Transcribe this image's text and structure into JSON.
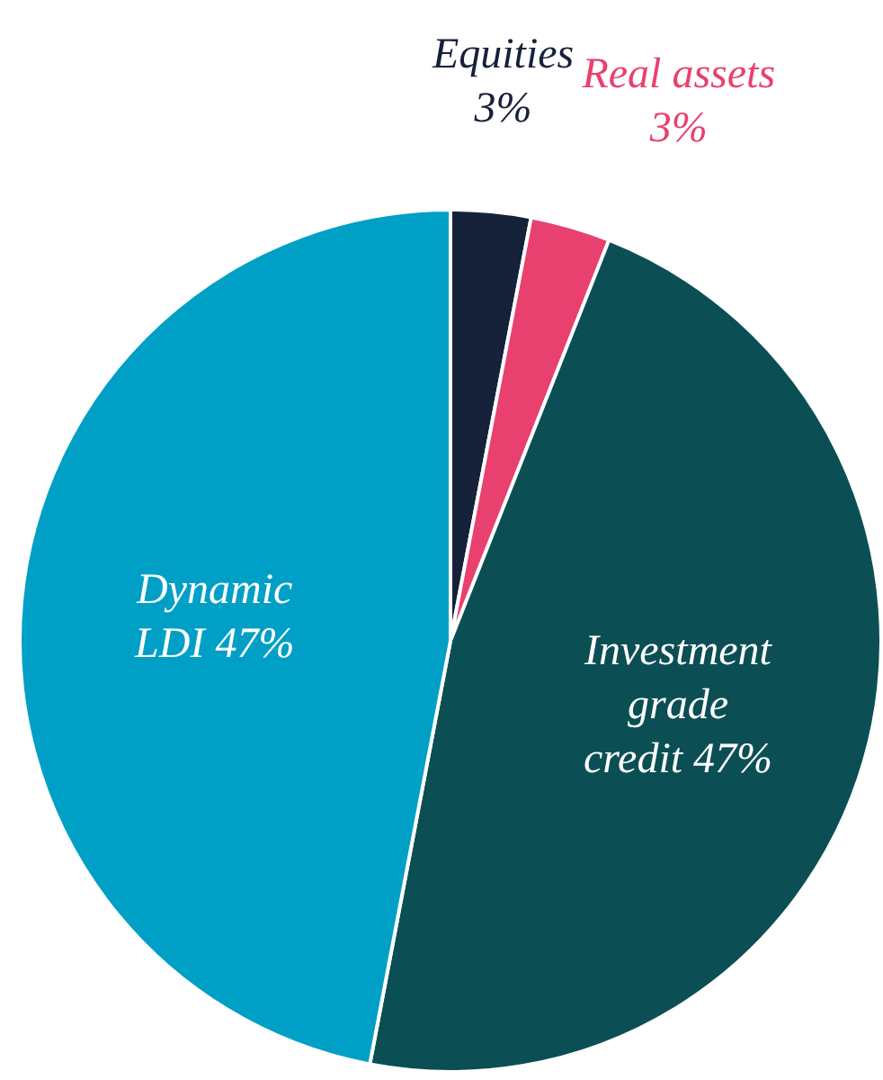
{
  "chart_data": {
    "type": "pie",
    "categories": [
      "Equities",
      "Real assets",
      "Investment grade credit",
      "Dynamic LDI"
    ],
    "values": [
      3,
      3,
      47,
      47
    ],
    "value_labels": [
      "3%",
      "3%",
      "47%",
      "47%"
    ],
    "colors": [
      "#16213a",
      "#e8416f",
      "#0b4f55",
      "#00a0c6"
    ],
    "legend": false
  }
}
